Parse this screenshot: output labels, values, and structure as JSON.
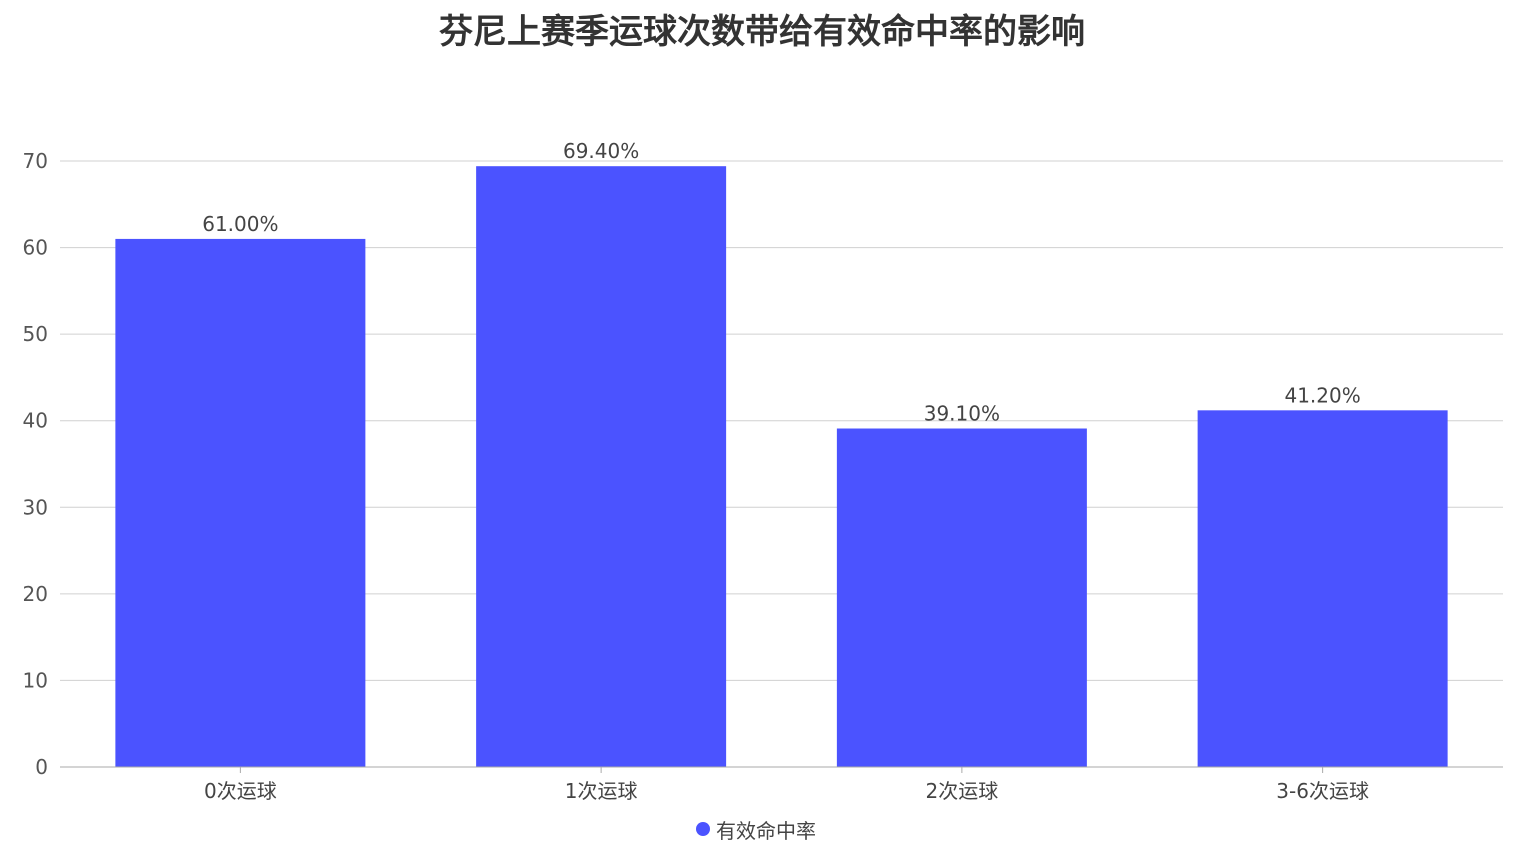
{
  "chart_data": {
    "type": "bar",
    "title": "芬尼上赛季运球次数带给有效命中率的影响",
    "categories": [
      "0次运球",
      "1次运球",
      "2次运球",
      "3-6次运球"
    ],
    "series": [
      {
        "name": "有效命中率",
        "values": [
          61.0,
          69.4,
          39.1,
          41.2
        ],
        "labels": [
          "61.00%",
          "69.40%",
          "39.10%",
          "41.20%"
        ]
      }
    ],
    "xlabel": "",
    "ylabel": "",
    "ylim": [
      0,
      70
    ],
    "yticks": [
      0,
      10,
      20,
      30,
      40,
      50,
      60,
      70
    ],
    "grid": true,
    "legend_position": "bottom-center",
    "colors": {
      "bar": "#4b53ff",
      "grid": "#d0d0d0",
      "axis": "#aaaaaa"
    }
  }
}
